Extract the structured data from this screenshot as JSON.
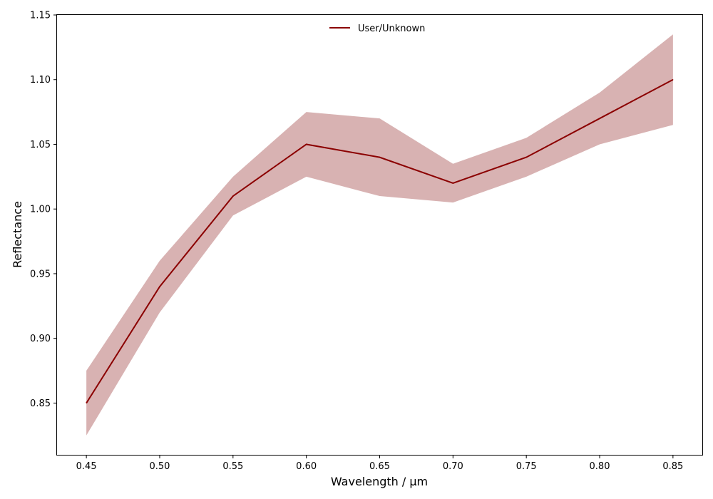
{
  "chart_data": {
    "type": "line",
    "title": "",
    "xlabel": "Wavelength / μm",
    "ylabel": "Reflectance",
    "xlim": [
      0.43,
      0.87
    ],
    "ylim": [
      0.81,
      1.15
    ],
    "xticks": [
      "0.45",
      "0.50",
      "0.55",
      "0.60",
      "0.65",
      "0.70",
      "0.75",
      "0.80",
      "0.85"
    ],
    "yticks": [
      "0.85",
      "0.90",
      "0.95",
      "1.00",
      "1.05",
      "1.10",
      "1.15"
    ],
    "grid": false,
    "legend_position": "top-center",
    "x": [
      0.45,
      0.5,
      0.55,
      0.6,
      0.65,
      0.7,
      0.75,
      0.8,
      0.85
    ],
    "series": [
      {
        "name": "User/Unknown",
        "color": "#8b0000",
        "band_color": "#d8b2b2",
        "values": [
          0.85,
          0.94,
          1.01,
          1.05,
          1.04,
          1.02,
          1.04,
          1.07,
          1.1
        ],
        "band_lower": [
          0.825,
          0.92,
          0.995,
          1.025,
          1.01,
          1.005,
          1.025,
          1.05,
          1.065
        ],
        "band_upper": [
          0.875,
          0.96,
          1.025,
          1.075,
          1.07,
          1.035,
          1.055,
          1.09,
          1.135
        ]
      }
    ]
  }
}
